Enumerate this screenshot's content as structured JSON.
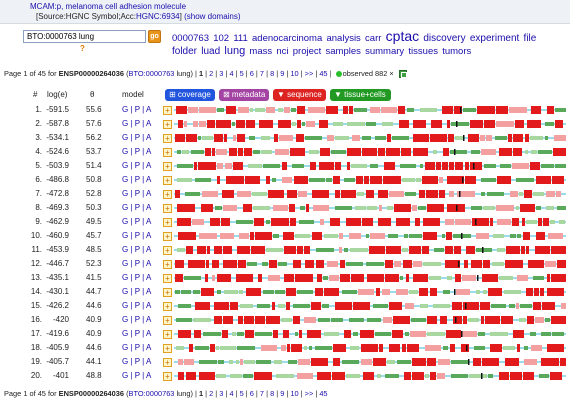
{
  "header": {
    "title": "MCAM:p, melanoma cell adhesion molecule",
    "source_prefix": "[Source:HGNC Symbol;Acc:",
    "source_link": "HGNC:6934",
    "source_suffix": "]",
    "show_domains": "(show domains)"
  },
  "search": {
    "value": "BTO:0000763 lung",
    "go_label": "go",
    "help": "?"
  },
  "tags": [
    "0000763",
    "102",
    "111",
    "adenocarcinoma",
    "analysis",
    "carr",
    "cptac",
    "discovery",
    "experiment",
    "file",
    "folder",
    "luad",
    "lung",
    "mass",
    "nci",
    "project",
    "samples",
    "summary",
    "tissues",
    "tumors"
  ],
  "pager": {
    "prefix": "Page 1 of 45 for",
    "gene_id": "ENSP00000264036",
    "term_open": "(",
    "term_link": "BTO:0000763",
    "term_close": " lung) |",
    "current": "1",
    "pages": [
      "2",
      "3",
      "4",
      "5",
      "6",
      "7",
      "8",
      "9",
      "10",
      ">>",
      "45"
    ],
    "observed": "observed 882 ×"
  },
  "columns": {
    "num": "#",
    "log": "log(e)",
    "theta": "θ",
    "model": "model"
  },
  "tabs": {
    "coverage": "⊞ coverage",
    "metadata": "⊠ metadata",
    "sequence": "▼ sequence",
    "tissue": "▼ tissue+cells"
  },
  "model_links": "G | P | A",
  "expand_label": "+",
  "colors": {
    "peptide": "#e31a1c",
    "peptide_light": "#f4a0a0",
    "tissue": "#5aa85a",
    "tissue_light": "#a8d8a0",
    "backbone": "#9bdcea",
    "link": "#1a0dab"
  },
  "rows": [
    {
      "n": "1.",
      "log": "-591.5",
      "theta": "55.6"
    },
    {
      "n": "2.",
      "log": "-587.8",
      "theta": "57.6"
    },
    {
      "n": "3.",
      "log": "-534.1",
      "theta": "56.2"
    },
    {
      "n": "4.",
      "log": "-524.6",
      "theta": "53.7"
    },
    {
      "n": "5.",
      "log": "-503.9",
      "theta": "51.4"
    },
    {
      "n": "6.",
      "log": "-486.8",
      "theta": "50.8"
    },
    {
      "n": "7.",
      "log": "-472.8",
      "theta": "52.8"
    },
    {
      "n": "8.",
      "log": "-469.3",
      "theta": "50.3"
    },
    {
      "n": "9.",
      "log": "-462.9",
      "theta": "49.5"
    },
    {
      "n": "10.",
      "log": "-460.9",
      "theta": "45.7"
    },
    {
      "n": "11.",
      "log": "-453.9",
      "theta": "48.5"
    },
    {
      "n": "12.",
      "log": "-446.7",
      "theta": "52.3"
    },
    {
      "n": "13.",
      "log": "-435.1",
      "theta": "41.5"
    },
    {
      "n": "14.",
      "log": "-430.1",
      "theta": "44.7"
    },
    {
      "n": "15.",
      "log": "-426.2",
      "theta": "44.6"
    },
    {
      "n": "16.",
      "log": "-420",
      "theta": "40.9"
    },
    {
      "n": "17.",
      "log": "-419.6",
      "theta": "40.9"
    },
    {
      "n": "18.",
      "log": "-405.9",
      "theta": "44.6"
    },
    {
      "n": "19.",
      "log": "-405.7",
      "theta": "44.1"
    },
    {
      "n": "20.",
      "log": "-401",
      "theta": "48.8"
    }
  ]
}
